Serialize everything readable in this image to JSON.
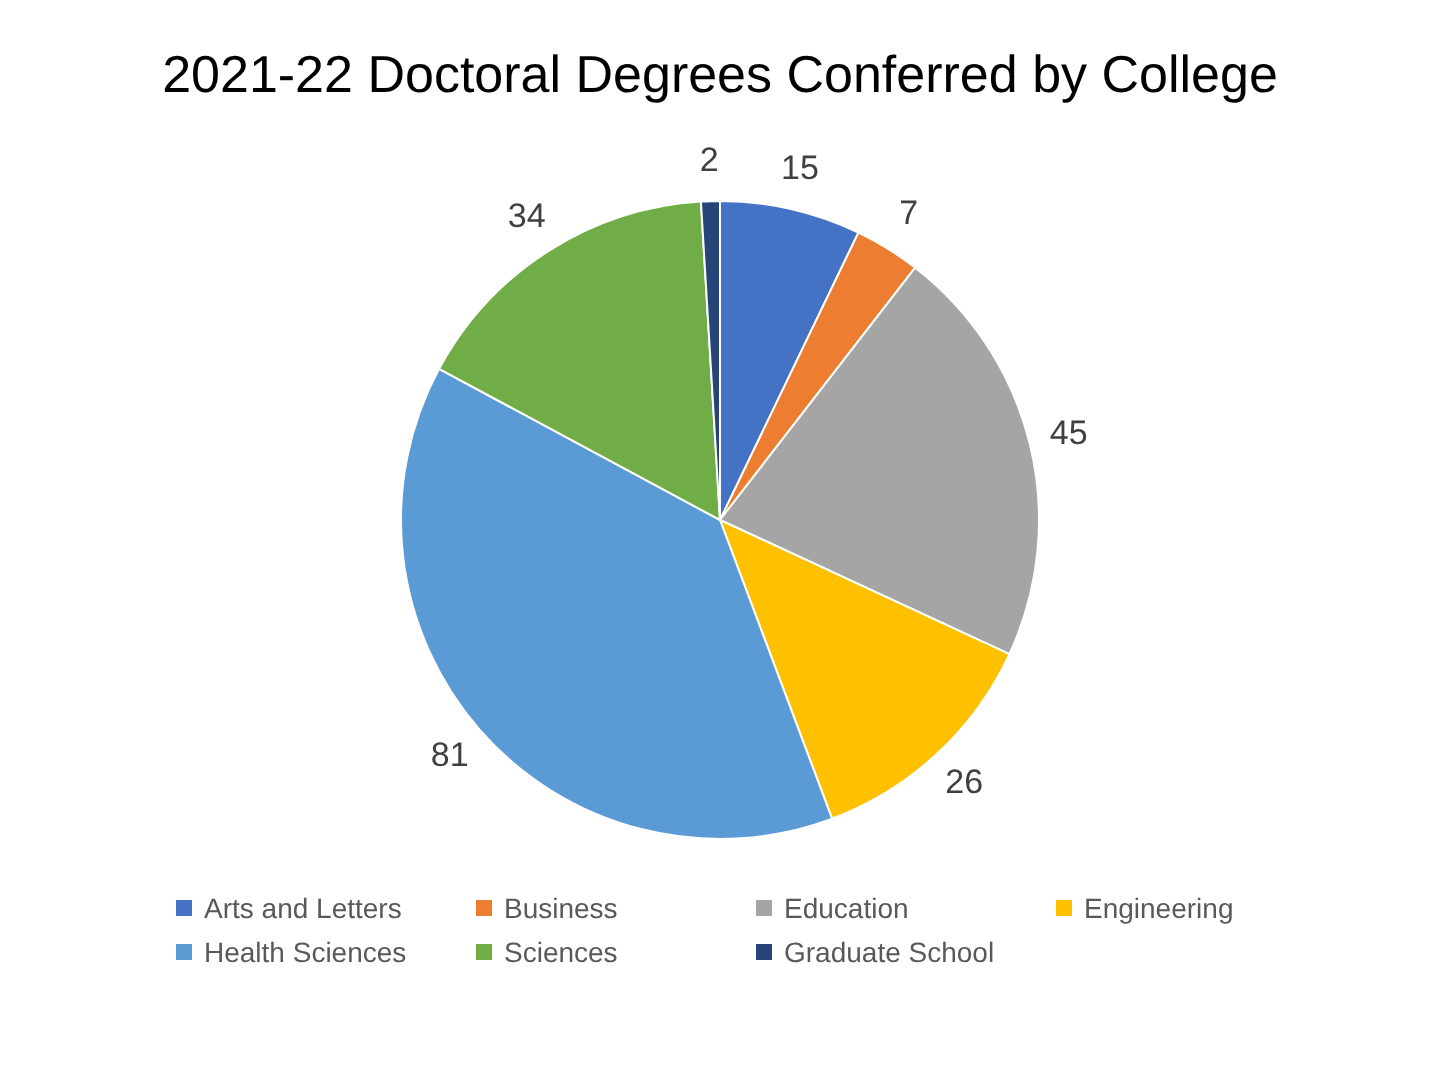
{
  "chart_data": {
    "type": "pie",
    "title": "2021-22 Doctoral Degrees Conferred by College",
    "categories": [
      "Arts and Letters",
      "Business",
      "Education",
      "Engineering",
      "Health Sciences",
      "Sciences",
      "Graduate School"
    ],
    "values": [
      15,
      7,
      45,
      26,
      81,
      34,
      2
    ],
    "colors": [
      "#4472c4",
      "#ed7d31",
      "#a5a5a5",
      "#ffc000",
      "#5b9bd5",
      "#70ad47",
      "#264478"
    ],
    "data_labels": true,
    "legend": "bottom"
  }
}
